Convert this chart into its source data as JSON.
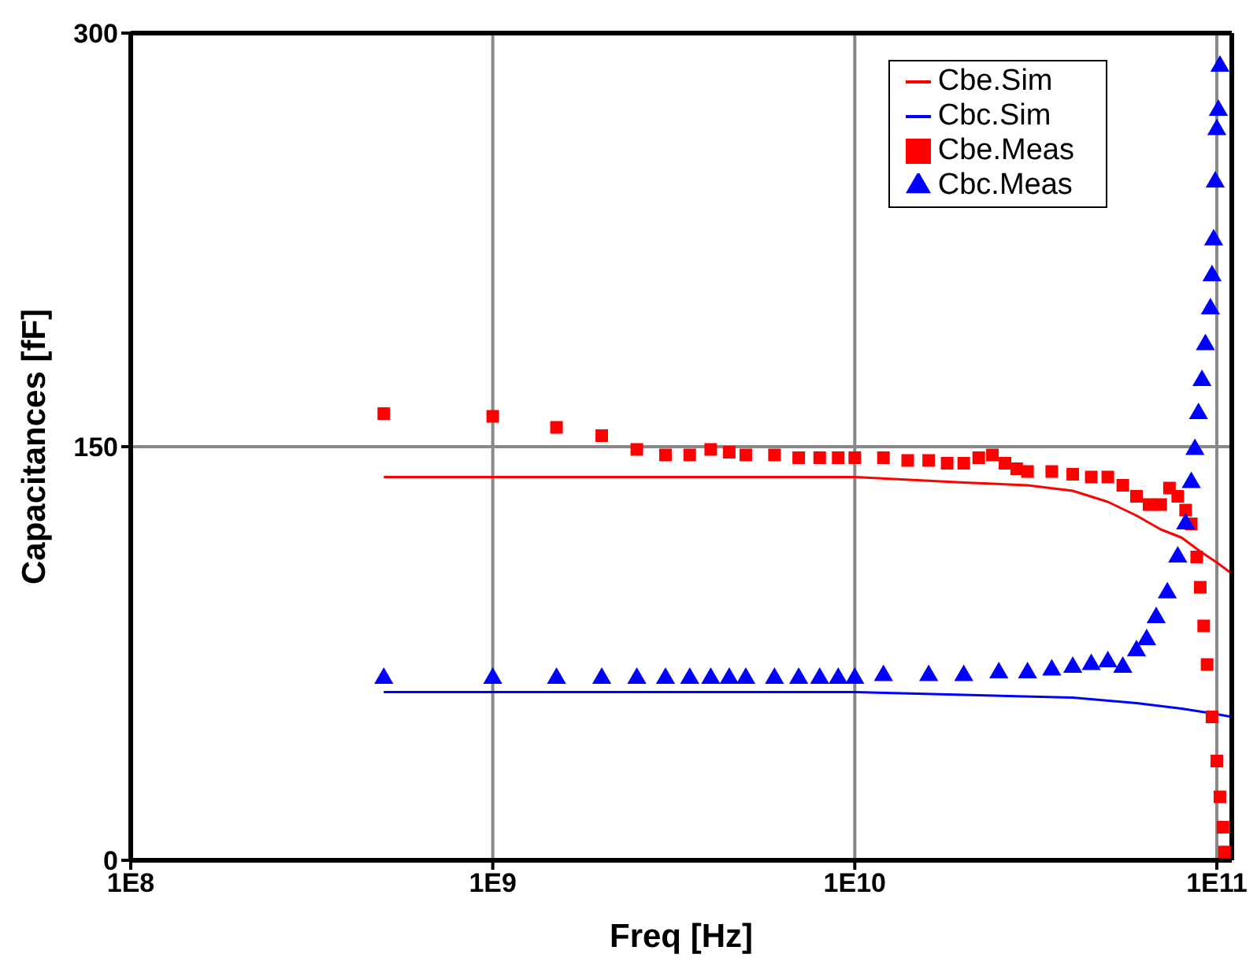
{
  "chart_data": {
    "type": "scatter",
    "xlabel": "Freq [Hz]",
    "ylabel": "Capacitances [fF]",
    "log": "x",
    "xlim": [
      100000000.0,
      110000000000.0
    ],
    "xticks": [
      {
        "value": 100000000.0,
        "label": "1E8"
      },
      {
        "value": 1000000000.0,
        "label": "1E9"
      },
      {
        "value": 10000000000.0,
        "label": "1E10"
      },
      {
        "value": 100000000000.0,
        "label": "1E11"
      }
    ],
    "ylim": [
      0,
      300
    ],
    "yticks": [
      0,
      150,
      300
    ],
    "grid": true,
    "legend": "top right",
    "series": [
      {
        "name": "Cbe.Sim",
        "type": "line",
        "color": "#ff0000",
        "marker": "none",
        "x": [
          500000000.0,
          1000000000.0,
          10000000000.0,
          20000000000.0,
          30000000000.0,
          40000000000.0,
          50000000000.0,
          60000000000.0,
          70000000000.0,
          80000000000.0,
          90000000000.0,
          100000000000.0,
          110000000000.0
        ],
        "values": [
          139,
          139,
          139,
          137,
          136,
          134,
          130,
          125,
          120,
          117,
          112,
          108,
          104
        ]
      },
      {
        "name": "Cbc.Sim",
        "type": "line",
        "color": "#0000ff",
        "marker": "none",
        "x": [
          500000000.0,
          1000000000.0,
          10000000000.0,
          20000000000.0,
          40000000000.0,
          60000000000.0,
          80000000000.0,
          100000000000.0,
          110000000000.0
        ],
        "values": [
          61,
          61,
          61,
          60,
          59,
          57,
          55,
          53,
          52
        ]
      },
      {
        "name": "Cbe.Meas",
        "color": "#ff0000",
        "marker": "square",
        "x": [
          500000000.0,
          1000000000.0,
          1500000000.0,
          2000000000.0,
          2500000000.0,
          3000000000.0,
          3500000000.0,
          4000000000.0,
          4500000000.0,
          5000000000.0,
          6000000000.0,
          7000000000.0,
          8000000000.0,
          9000000000.0,
          10000000000.0,
          12000000000.0,
          14000000000.0,
          16000000000.0,
          18000000000.0,
          20000000000.0,
          22000000000.0,
          24000000000.0,
          26000000000.0,
          28000000000.0,
          30000000000.0,
          35000000000.0,
          40000000000.0,
          45000000000.0,
          50000000000.0,
          55000000000.0,
          60000000000.0,
          65000000000.0,
          70000000000.0,
          74000000000.0,
          78000000000.0,
          82000000000.0,
          85000000000.0,
          88000000000.0,
          90000000000.0,
          92000000000.0,
          94000000000.0,
          97000000000.0,
          100000000000.0,
          102000000000.0,
          104000000000.0,
          105000000000.0
        ],
        "values": [
          162,
          161,
          157,
          154,
          149,
          147,
          147,
          149,
          148,
          147,
          147,
          146,
          146,
          146,
          146,
          146,
          145,
          145,
          144,
          144,
          146,
          147,
          144,
          142,
          141,
          141,
          140,
          139,
          139,
          136,
          132,
          129,
          129,
          135,
          132,
          127,
          122,
          110,
          99,
          85,
          71,
          52,
          36,
          23,
          12,
          3
        ]
      },
      {
        "name": "Cbc.Meas",
        "color": "#0000ff",
        "marker": "triangle",
        "x": [
          500000000.0,
          1000000000.0,
          1500000000.0,
          2000000000.0,
          2500000000.0,
          3000000000.0,
          3500000000.0,
          4000000000.0,
          4500000000.0,
          5000000000.0,
          6000000000.0,
          7000000000.0,
          8000000000.0,
          9000000000.0,
          10000000000.0,
          12000000000.0,
          16000000000.0,
          20000000000.0,
          25000000000.0,
          30000000000.0,
          35000000000.0,
          40000000000.0,
          45000000000.0,
          50000000000.0,
          55000000000.0,
          60000000000.0,
          64000000000.0,
          68000000000.0,
          73000000000.0,
          78000000000.0,
          82000000000.0,
          85000000000.0,
          87000000000.0,
          89000000000.0,
          91000000000.0,
          93000000000.0,
          96000000000.0,
          97000000000.0,
          98000000000.0,
          99000000000.0,
          100000000000.0,
          101000000000.0,
          102000000000.0
        ],
        "values": [
          66,
          66,
          66,
          66,
          66,
          66,
          66,
          66,
          66,
          66,
          66,
          66,
          66,
          66,
          66,
          67,
          67,
          67,
          68,
          68,
          69,
          70,
          71,
          72,
          70,
          76,
          80,
          88,
          97,
          110,
          122,
          137,
          149,
          162,
          174,
          187,
          200,
          212,
          225,
          246,
          265,
          272,
          288
        ]
      }
    ]
  }
}
